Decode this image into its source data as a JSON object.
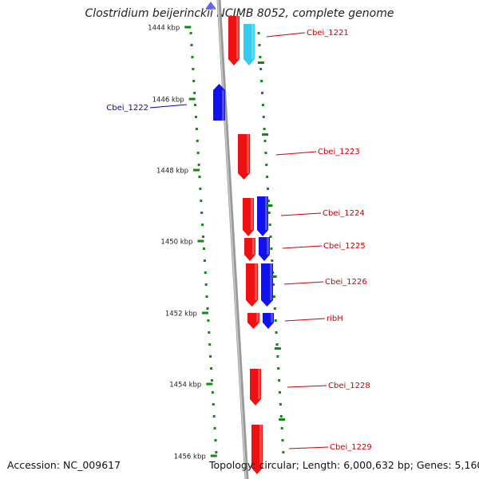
{
  "title": "Clostridium beijerinckii NCIMB 8052, complete genome",
  "footer": {
    "accession": "Accession: NC_009617",
    "topology": "Topology: circular; Length: 6,000,632 bp; Genes: 5,160"
  },
  "colors": {
    "forward_gene": "#ee1111",
    "reverse_gene": "#1111ee",
    "highlight_gene": "#33ccee",
    "tick": "#118811",
    "backbone": "#999999",
    "label_red": "#cc0000",
    "label_blue": "#0000cc"
  },
  "ticks": [
    {
      "label": "1444 kbp",
      "kbp": 1444
    },
    {
      "label": "1446 kbp",
      "kbp": 1446
    },
    {
      "label": "1448 kbp",
      "kbp": 1448
    },
    {
      "label": "1450 kbp",
      "kbp": 1450
    },
    {
      "label": "1452 kbp",
      "kbp": 1452
    },
    {
      "label": "1454 kbp",
      "kbp": 1454
    },
    {
      "label": "1456 kbp",
      "kbp": 1456
    }
  ],
  "genes": [
    {
      "name": "Cbei_1221",
      "labeled": true,
      "label_color": "red"
    },
    {
      "name": "Cbei_1222",
      "labeled": true,
      "label_color": "blue"
    },
    {
      "name": "Cbei_1223",
      "labeled": true,
      "label_color": "red"
    },
    {
      "name": "Cbei_1224",
      "labeled": true,
      "label_color": "red"
    },
    {
      "name": "Cbei_1225",
      "labeled": true,
      "label_color": "red"
    },
    {
      "name": "Cbei_1226",
      "labeled": true,
      "label_color": "red"
    },
    {
      "name": "ribH",
      "labeled": true,
      "label_color": "red"
    },
    {
      "name": "Cbei_1228",
      "labeled": true,
      "label_color": "red"
    },
    {
      "name": "Cbei_1229",
      "labeled": true,
      "label_color": "red"
    }
  ]
}
